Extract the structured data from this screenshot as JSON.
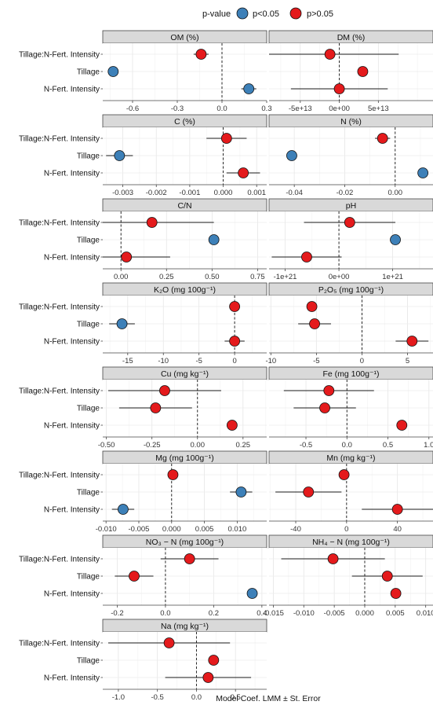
{
  "legend": {
    "title": "p-value",
    "items": [
      {
        "label": "p<0.05",
        "color": "#3d80b8"
      },
      {
        "label": "p>0.05",
        "color": "#e41a1c"
      }
    ]
  },
  "x_axis_title": "Model Coef. LMM ± St. Error",
  "row_labels": [
    "Tillage:N-Fert. Intensity",
    "Tillage",
    "N-Fert. Intensity"
  ],
  "chart_data": [
    {
      "type": "scatter",
      "title": "OM (%)",
      "xlim": [
        -0.8,
        0.3
      ],
      "ticks": [
        {
          "v": -0.6,
          "t": "-0.6"
        },
        {
          "v": -0.3,
          "t": "-0.3"
        },
        {
          "v": 0.0,
          "t": "0.0"
        },
        {
          "v": 0.3,
          "t": "0.3"
        }
      ],
      "points": [
        {
          "term": "Tillage:N-Fert. Intensity",
          "estimate": -0.14,
          "se": 0.05,
          "sig": false
        },
        {
          "term": "Tillage",
          "estimate": -0.73,
          "se": 0.02,
          "sig": true
        },
        {
          "term": "N-Fert. Intensity",
          "estimate": 0.18,
          "se": 0.05,
          "sig": true
        }
      ]
    },
    {
      "type": "scatter",
      "title": "DM (%)",
      "xlim": [
        -90000000000000.0,
        120000000000000.0
      ],
      "ticks": [
        {
          "v": -50000000000000.0,
          "t": "-5e+13"
        },
        {
          "v": 0,
          "t": "0e+00"
        },
        {
          "v": 50000000000000.0,
          "t": "5e+13"
        }
      ],
      "points": [
        {
          "term": "Tillage:N-Fert. Intensity",
          "estimate": -12000000000000.0,
          "se": 88000000000000.0,
          "sig": false
        },
        {
          "term": "Tillage",
          "estimate": 30000000000000.0,
          "se": 0,
          "sig": false
        },
        {
          "term": "N-Fert. Intensity",
          "estimate": 0,
          "se": 62000000000000.0,
          "sig": false
        }
      ]
    },
    {
      "type": "scatter",
      "title": "C (%)",
      "xlim": [
        -0.0036,
        0.0013
      ],
      "ticks": [
        {
          "v": -0.003,
          "t": "-0.003"
        },
        {
          "v": -0.002,
          "t": "-0.002"
        },
        {
          "v": -0.001,
          "t": "-0.001"
        },
        {
          "v": 0.0,
          "t": "0.000"
        },
        {
          "v": 0.001,
          "t": "0.001"
        }
      ],
      "points": [
        {
          "term": "Tillage:N-Fert. Intensity",
          "estimate": 0.0001,
          "se": 0.0006,
          "sig": false
        },
        {
          "term": "Tillage",
          "estimate": -0.0031,
          "se": 0.0004,
          "sig": true
        },
        {
          "term": "N-Fert. Intensity",
          "estimate": 0.0006,
          "se": 0.0005,
          "sig": false
        }
      ]
    },
    {
      "type": "scatter",
      "title": "N (%)",
      "xlim": [
        -0.05,
        0.015
      ],
      "ticks": [
        {
          "v": -0.04,
          "t": "-0.04"
        },
        {
          "v": -0.02,
          "t": "-0.02"
        },
        {
          "v": 0.0,
          "t": "0.00"
        }
      ],
      "points": [
        {
          "term": "Tillage:N-Fert. Intensity",
          "estimate": -0.005,
          "se": 0.003,
          "sig": false
        },
        {
          "term": "Tillage",
          "estimate": -0.041,
          "se": 0.002,
          "sig": true
        },
        {
          "term": "N-Fert. Intensity",
          "estimate": 0.011,
          "se": 0.001,
          "sig": true
        }
      ]
    },
    {
      "type": "scatter",
      "title": "C/N",
      "xlim": [
        -0.1,
        0.8
      ],
      "ticks": [
        {
          "v": 0.0,
          "t": "0.00"
        },
        {
          "v": 0.25,
          "t": "0.25"
        },
        {
          "v": 0.5,
          "t": "0.50"
        },
        {
          "v": 0.75,
          "t": "0.75"
        }
      ],
      "points": [
        {
          "term": "Tillage:N-Fert. Intensity",
          "estimate": 0.17,
          "se": 0.34,
          "sig": false
        },
        {
          "term": "Tillage",
          "estimate": 0.51,
          "se": 0.0,
          "sig": true
        },
        {
          "term": "N-Fert. Intensity",
          "estimate": 0.03,
          "se": 0.24,
          "sig": false
        }
      ]
    },
    {
      "type": "scatter",
      "title": "pH",
      "xlim": [
        -1.3e+21,
        1.75e+21
      ],
      "ticks": [
        {
          "v": -1e+21,
          "t": "-1e+21"
        },
        {
          "v": 0,
          "t": "0e+00"
        },
        {
          "v": 1e+21,
          "t": "1e+21"
        }
      ],
      "points": [
        {
          "term": "Tillage:N-Fert. Intensity",
          "estimate": 2e+20,
          "se": 8.5e+20,
          "sig": false
        },
        {
          "term": "Tillage",
          "estimate": 1.05e+21,
          "se": 0,
          "sig": true
        },
        {
          "term": "N-Fert. Intensity",
          "estimate": -6e+20,
          "se": 6.5e+20,
          "sig": false
        }
      ]
    },
    {
      "type": "scatter",
      "title": "K₂O (mg 100g⁻¹)",
      "xlim": [
        -18.5,
        4.5
      ],
      "ticks": [
        {
          "v": -15,
          "t": "-15"
        },
        {
          "v": -10,
          "t": "-10"
        },
        {
          "v": -5,
          "t": "-5"
        },
        {
          "v": 0,
          "t": "0"
        }
      ],
      "points": [
        {
          "term": "Tillage:N-Fert. Intensity",
          "estimate": 0,
          "se": 0,
          "sig": false
        },
        {
          "term": "Tillage",
          "estimate": -15.8,
          "se": 1.8,
          "sig": true
        },
        {
          "term": "N-Fert. Intensity",
          "estimate": 0,
          "se": 1.4,
          "sig": false
        }
      ]
    },
    {
      "type": "scatter",
      "title": "P₂O₅ (mg 100g⁻¹)",
      "xlim": [
        -10.2,
        7.8
      ],
      "ticks": [
        {
          "v": -10,
          "t": "-10"
        },
        {
          "v": -5,
          "t": "-5"
        },
        {
          "v": 0,
          "t": "0"
        },
        {
          "v": 5,
          "t": "5"
        }
      ],
      "points": [
        {
          "term": "Tillage:N-Fert. Intensity",
          "estimate": -5.5,
          "se": 0,
          "sig": false
        },
        {
          "term": "Tillage",
          "estimate": -5.2,
          "se": 1.8,
          "sig": false
        },
        {
          "term": "N-Fert. Intensity",
          "estimate": 5.5,
          "se": 1.8,
          "sig": false
        }
      ]
    },
    {
      "type": "scatter",
      "title": "Cu (mg kg⁻¹)",
      "xlim": [
        -0.52,
        0.38
      ],
      "ticks": [
        {
          "v": -0.5,
          "t": "-0.50"
        },
        {
          "v": -0.25,
          "t": "-0.25"
        },
        {
          "v": 0.0,
          "t": "0.00"
        },
        {
          "v": 0.25,
          "t": "0.25"
        }
      ],
      "points": [
        {
          "term": "Tillage:N-Fert. Intensity",
          "estimate": -0.18,
          "se": 0.31,
          "sig": false
        },
        {
          "term": "Tillage",
          "estimate": -0.23,
          "se": 0.2,
          "sig": false
        },
        {
          "term": "N-Fert. Intensity",
          "estimate": 0.19,
          "se": 0,
          "sig": false
        }
      ]
    },
    {
      "type": "scatter",
      "title": "Fe (mg 100g⁻¹)",
      "xlim": [
        -0.95,
        1.05
      ],
      "ticks": [
        {
          "v": -0.5,
          "t": "-0.5"
        },
        {
          "v": 0.0,
          "t": "0.0"
        },
        {
          "v": 0.5,
          "t": "0.5"
        },
        {
          "v": 1.0,
          "t": "1.0"
        }
      ],
      "points": [
        {
          "term": "Tillage:N-Fert. Intensity",
          "estimate": -0.22,
          "se": 0.55,
          "sig": false
        },
        {
          "term": "Tillage",
          "estimate": -0.27,
          "se": 0.38,
          "sig": false
        },
        {
          "term": "N-Fert. Intensity",
          "estimate": 0.67,
          "se": 0,
          "sig": false
        }
      ]
    },
    {
      "type": "scatter",
      "title": "Mg (mg 100g⁻¹)",
      "xlim": [
        -0.0105,
        0.0145
      ],
      "ticks": [
        {
          "v": -0.01,
          "t": "-0.010"
        },
        {
          "v": -0.005,
          "t": "-0.005"
        },
        {
          "v": 0.0,
          "t": "0.000"
        },
        {
          "v": 0.005,
          "t": "0.005"
        },
        {
          "v": 0.01,
          "t": "0.010"
        }
      ],
      "points": [
        {
          "term": "Tillage:N-Fert. Intensity",
          "estimate": 0.0002,
          "se": 0.0005,
          "sig": false
        },
        {
          "term": "Tillage",
          "estimate": 0.0106,
          "se": 0.0017,
          "sig": true
        },
        {
          "term": "N-Fert. Intensity",
          "estimate": -0.0074,
          "se": 0.0017,
          "sig": true
        }
      ]
    },
    {
      "type": "scatter",
      "title": "Mn (mg kg⁻¹)",
      "xlim": [
        -61,
        68
      ],
      "ticks": [
        {
          "v": -40,
          "t": "-40"
        },
        {
          "v": 0,
          "t": "0"
        },
        {
          "v": 40,
          "t": "40"
        }
      ],
      "points": [
        {
          "term": "Tillage:N-Fert. Intensity",
          "estimate": -2,
          "se": 0,
          "sig": false
        },
        {
          "term": "Tillage",
          "estimate": -30,
          "se": 26,
          "sig": false
        },
        {
          "term": "N-Fert. Intensity",
          "estimate": 40,
          "se": 28,
          "sig": false
        }
      ]
    },
    {
      "type": "scatter",
      "title": "NO₃ − N (mg 100g⁻¹)",
      "xlim": [
        -0.26,
        0.42
      ],
      "ticks": [
        {
          "v": -0.2,
          "t": "-0.2"
        },
        {
          "v": 0.0,
          "t": "0.0"
        },
        {
          "v": 0.2,
          "t": "0.2"
        },
        {
          "v": 0.4,
          "t": "0.4"
        }
      ],
      "points": [
        {
          "term": "Tillage:N-Fert. Intensity",
          "estimate": 0.1,
          "se": 0.12,
          "sig": false
        },
        {
          "term": "Tillage",
          "estimate": -0.13,
          "se": 0.08,
          "sig": false
        },
        {
          "term": "N-Fert. Intensity",
          "estimate": 0.36,
          "se": 0,
          "sig": true
        }
      ]
    },
    {
      "type": "scatter",
      "title": "NH₄ − N (mg 100g⁻¹)",
      "xlim": [
        -0.0157,
        0.0112
      ],
      "ticks": [
        {
          "v": -0.015,
          "t": "-0.015"
        },
        {
          "v": -0.01,
          "t": "-0.010"
        },
        {
          "v": -0.005,
          "t": "-0.005"
        },
        {
          "v": 0.0,
          "t": "0.000"
        },
        {
          "v": 0.005,
          "t": "0.005"
        },
        {
          "v": 0.01,
          "t": "0.010"
        }
      ],
      "points": [
        {
          "term": "Tillage:N-Fert. Intensity",
          "estimate": -0.0052,
          "se": 0.0085,
          "sig": false
        },
        {
          "term": "Tillage",
          "estimate": 0.0037,
          "se": 0.0058,
          "sig": false
        },
        {
          "term": "N-Fert. Intensity",
          "estimate": 0.0051,
          "se": 0,
          "sig": false
        }
      ]
    },
    {
      "type": "scatter",
      "title": "Na (mg kg⁻¹)",
      "xlim": [
        -1.2,
        0.9
      ],
      "ticks": [
        {
          "v": -1.0,
          "t": "-1.0"
        },
        {
          "v": -0.5,
          "t": "-0.5"
        },
        {
          "v": 0.0,
          "t": "0.0"
        },
        {
          "v": 0.5,
          "t": "0.5"
        }
      ],
      "points": [
        {
          "term": "Tillage:N-Fert. Intensity",
          "estimate": -0.35,
          "se": 0.78,
          "sig": false
        },
        {
          "term": "Tillage",
          "estimate": 0.22,
          "se": 0,
          "sig": false
        },
        {
          "term": "N-Fert. Intensity",
          "estimate": 0.15,
          "se": 0.55,
          "sig": false
        }
      ]
    }
  ]
}
